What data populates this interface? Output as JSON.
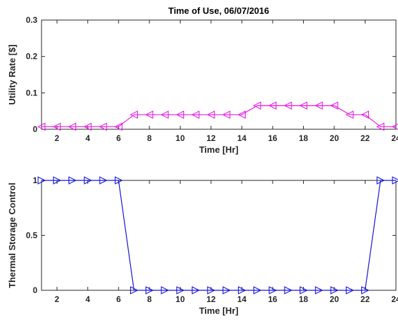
{
  "chart_data": [
    {
      "type": "line",
      "title": "Time of Use, 06/07/2016",
      "xlabel": "Time [Hr]",
      "ylabel": "Utility Rate [$]",
      "xlim": [
        1,
        24
      ],
      "ylim": [
        0,
        0.3
      ],
      "x_ticks": [
        2,
        4,
        6,
        8,
        10,
        12,
        14,
        16,
        18,
        20,
        22,
        24
      ],
      "y_ticks": [
        0,
        0.1,
        0.2,
        0.3
      ],
      "y_tick_labels": [
        "0",
        "0.1",
        "0.2",
        "0.3"
      ],
      "grid": false,
      "marker": "triangle-left",
      "color": "#e619e6",
      "x": [
        1,
        2,
        3,
        4,
        5,
        6,
        7,
        8,
        9,
        10,
        11,
        12,
        13,
        14,
        15,
        16,
        17,
        18,
        19,
        20,
        21,
        22,
        23,
        24
      ],
      "values": [
        0.007,
        0.007,
        0.007,
        0.007,
        0.007,
        0.007,
        0.04,
        0.04,
        0.04,
        0.04,
        0.04,
        0.04,
        0.04,
        0.04,
        0.065,
        0.065,
        0.065,
        0.065,
        0.065,
        0.065,
        0.04,
        0.04,
        0.007,
        0.007
      ]
    },
    {
      "type": "line",
      "xlabel": "Time [Hr]",
      "ylabel": "Thermal Storage Control",
      "xlim": [
        1,
        24
      ],
      "ylim": [
        0,
        1
      ],
      "x_ticks": [
        2,
        4,
        6,
        8,
        10,
        12,
        14,
        16,
        18,
        20,
        22,
        24
      ],
      "y_ticks": [
        0,
        0.5,
        1
      ],
      "y_tick_labels": [
        "0",
        "0.5",
        "1"
      ],
      "grid": false,
      "marker": "triangle-right",
      "color": "#1414d9",
      "x": [
        1,
        2,
        3,
        4,
        5,
        6,
        7,
        8,
        9,
        10,
        11,
        12,
        13,
        14,
        15,
        16,
        17,
        18,
        19,
        20,
        21,
        22,
        23,
        24
      ],
      "values": [
        1,
        1,
        1,
        1,
        1,
        1,
        0,
        0,
        0,
        0,
        0,
        0,
        0,
        0,
        0,
        0,
        0,
        0,
        0,
        0,
        0,
        0,
        1,
        1
      ]
    }
  ]
}
